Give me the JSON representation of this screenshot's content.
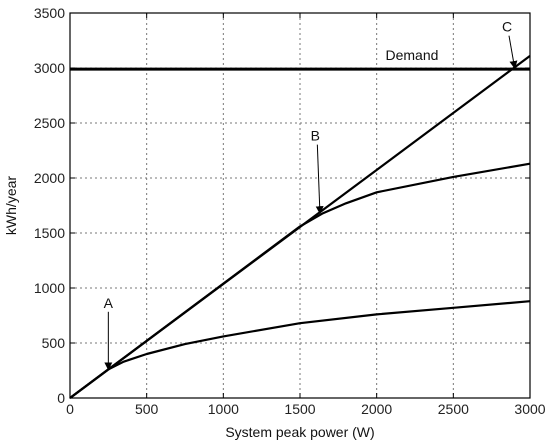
{
  "chart_data": {
    "type": "line",
    "title": "",
    "xlabel": "System peak power (W)",
    "ylabel": "kWh/year",
    "xlim": [
      0,
      3000
    ],
    "ylim": [
      0,
      3500
    ],
    "xticks": [
      0,
      500,
      1000,
      1500,
      2000,
      2500,
      3000
    ],
    "yticks": [
      0,
      500,
      1000,
      1500,
      2000,
      2500,
      3000,
      3500
    ],
    "xtick_labels": [
      "0",
      "500",
      "1000",
      "1500",
      "2000",
      "2500",
      "3000"
    ],
    "ytick_labels": [
      "0",
      "500",
      "1000",
      "1500",
      "2000",
      "2500",
      "3000",
      "3500"
    ],
    "grid": true,
    "series": [
      {
        "x": [
          0,
          3000
        ],
        "y": [
          0,
          3110
        ]
      },
      {
        "x": [
          0,
          250,
          500,
          1000,
          1500,
          1650,
          1800,
          2000,
          2500,
          3000
        ],
        "y": [
          0,
          260,
          520,
          1040,
          1560,
          1680,
          1770,
          1870,
          2010,
          2130
        ]
      },
      {
        "x": [
          0,
          250,
          350,
          500,
          750,
          1000,
          1500,
          2000,
          2500,
          3000
        ],
        "y": [
          0,
          260,
          330,
          400,
          490,
          560,
          680,
          760,
          820,
          880
        ]
      }
    ],
    "demand": {
      "label": "Demand",
      "value": 2990
    },
    "annotations": [
      {
        "text": "A",
        "x": 250,
        "y": 260,
        "label_x": 250,
        "label_y": 820
      },
      {
        "text": "B",
        "x": 1630,
        "y": 1680,
        "label_x": 1600,
        "label_y": 2340
      },
      {
        "text": "C",
        "x": 2900,
        "y": 3000,
        "label_x": 2850,
        "label_y": 3330
      }
    ]
  }
}
